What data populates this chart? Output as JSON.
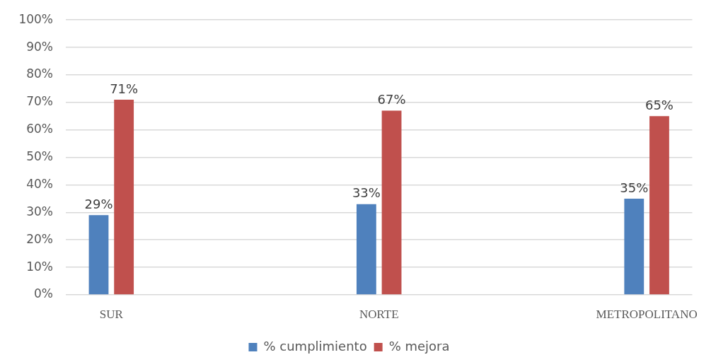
{
  "chart_data": {
    "type": "bar",
    "categories": [
      "SUR",
      "NORTE",
      "METROPOLITANO"
    ],
    "series": [
      {
        "name": "% cumplimiento",
        "color": "#4f81bd",
        "values": [
          29,
          33,
          35
        ],
        "value_labels": [
          "29%",
          "33%",
          "35%"
        ]
      },
      {
        "name": "% mejora",
        "color": "#c0504d",
        "values": [
          71,
          67,
          65
        ],
        "value_labels": [
          "71%",
          "67%",
          "65%"
        ]
      }
    ],
    "ylim": [
      0,
      100
    ],
    "yticks": [
      {
        "value": 0,
        "label": "0%"
      },
      {
        "value": 10,
        "label": "10%"
      },
      {
        "value": 20,
        "label": "20%"
      },
      {
        "value": 30,
        "label": "30%"
      },
      {
        "value": 40,
        "label": "40%"
      },
      {
        "value": 50,
        "label": "50%"
      },
      {
        "value": 60,
        "label": "60%"
      },
      {
        "value": 70,
        "label": "70%"
      },
      {
        "value": 80,
        "label": "80%"
      },
      {
        "value": 90,
        "label": "90%"
      },
      {
        "value": 100,
        "label": "100%"
      }
    ],
    "grid": "y",
    "legend": "bottom"
  }
}
